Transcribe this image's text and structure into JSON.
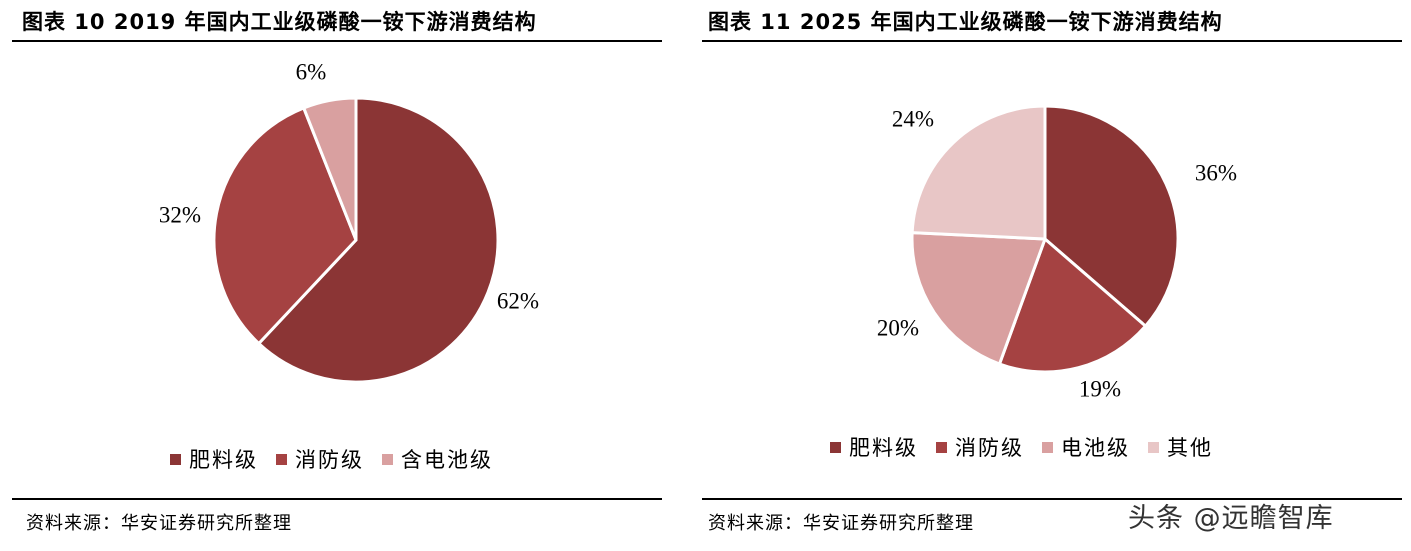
{
  "chart_data": [
    {
      "type": "pie",
      "title": "图表 10  2019 年国内工业级磷酸一铵下游消费结构",
      "categories": [
        "肥料级",
        "消防级",
        "含电池级"
      ],
      "values": [
        62,
        32,
        6
      ],
      "value_labels": [
        "62%",
        "32%",
        "6%"
      ],
      "colors": [
        "#8b3535",
        "#a54242",
        "#d9a0a0"
      ],
      "legend_position": "bottom",
      "source": "资料来源：华安证券研究所整理"
    },
    {
      "type": "pie",
      "title": "图表 11  2025 年国内工业级磷酸一铵下游消费结构",
      "categories": [
        "肥料级",
        "消防级",
        "电池级",
        "其他"
      ],
      "values": [
        36,
        19,
        20,
        24
      ],
      "value_labels": [
        "36%",
        "19%",
        "20%",
        "24%"
      ],
      "colors": [
        "#8b3535",
        "#a54242",
        "#d9a0a0",
        "#e8c6c6"
      ],
      "legend_position": "bottom",
      "source": "资料来源：华安证券研究所整理"
    }
  ],
  "watermark": "头条 @远瞻智库"
}
